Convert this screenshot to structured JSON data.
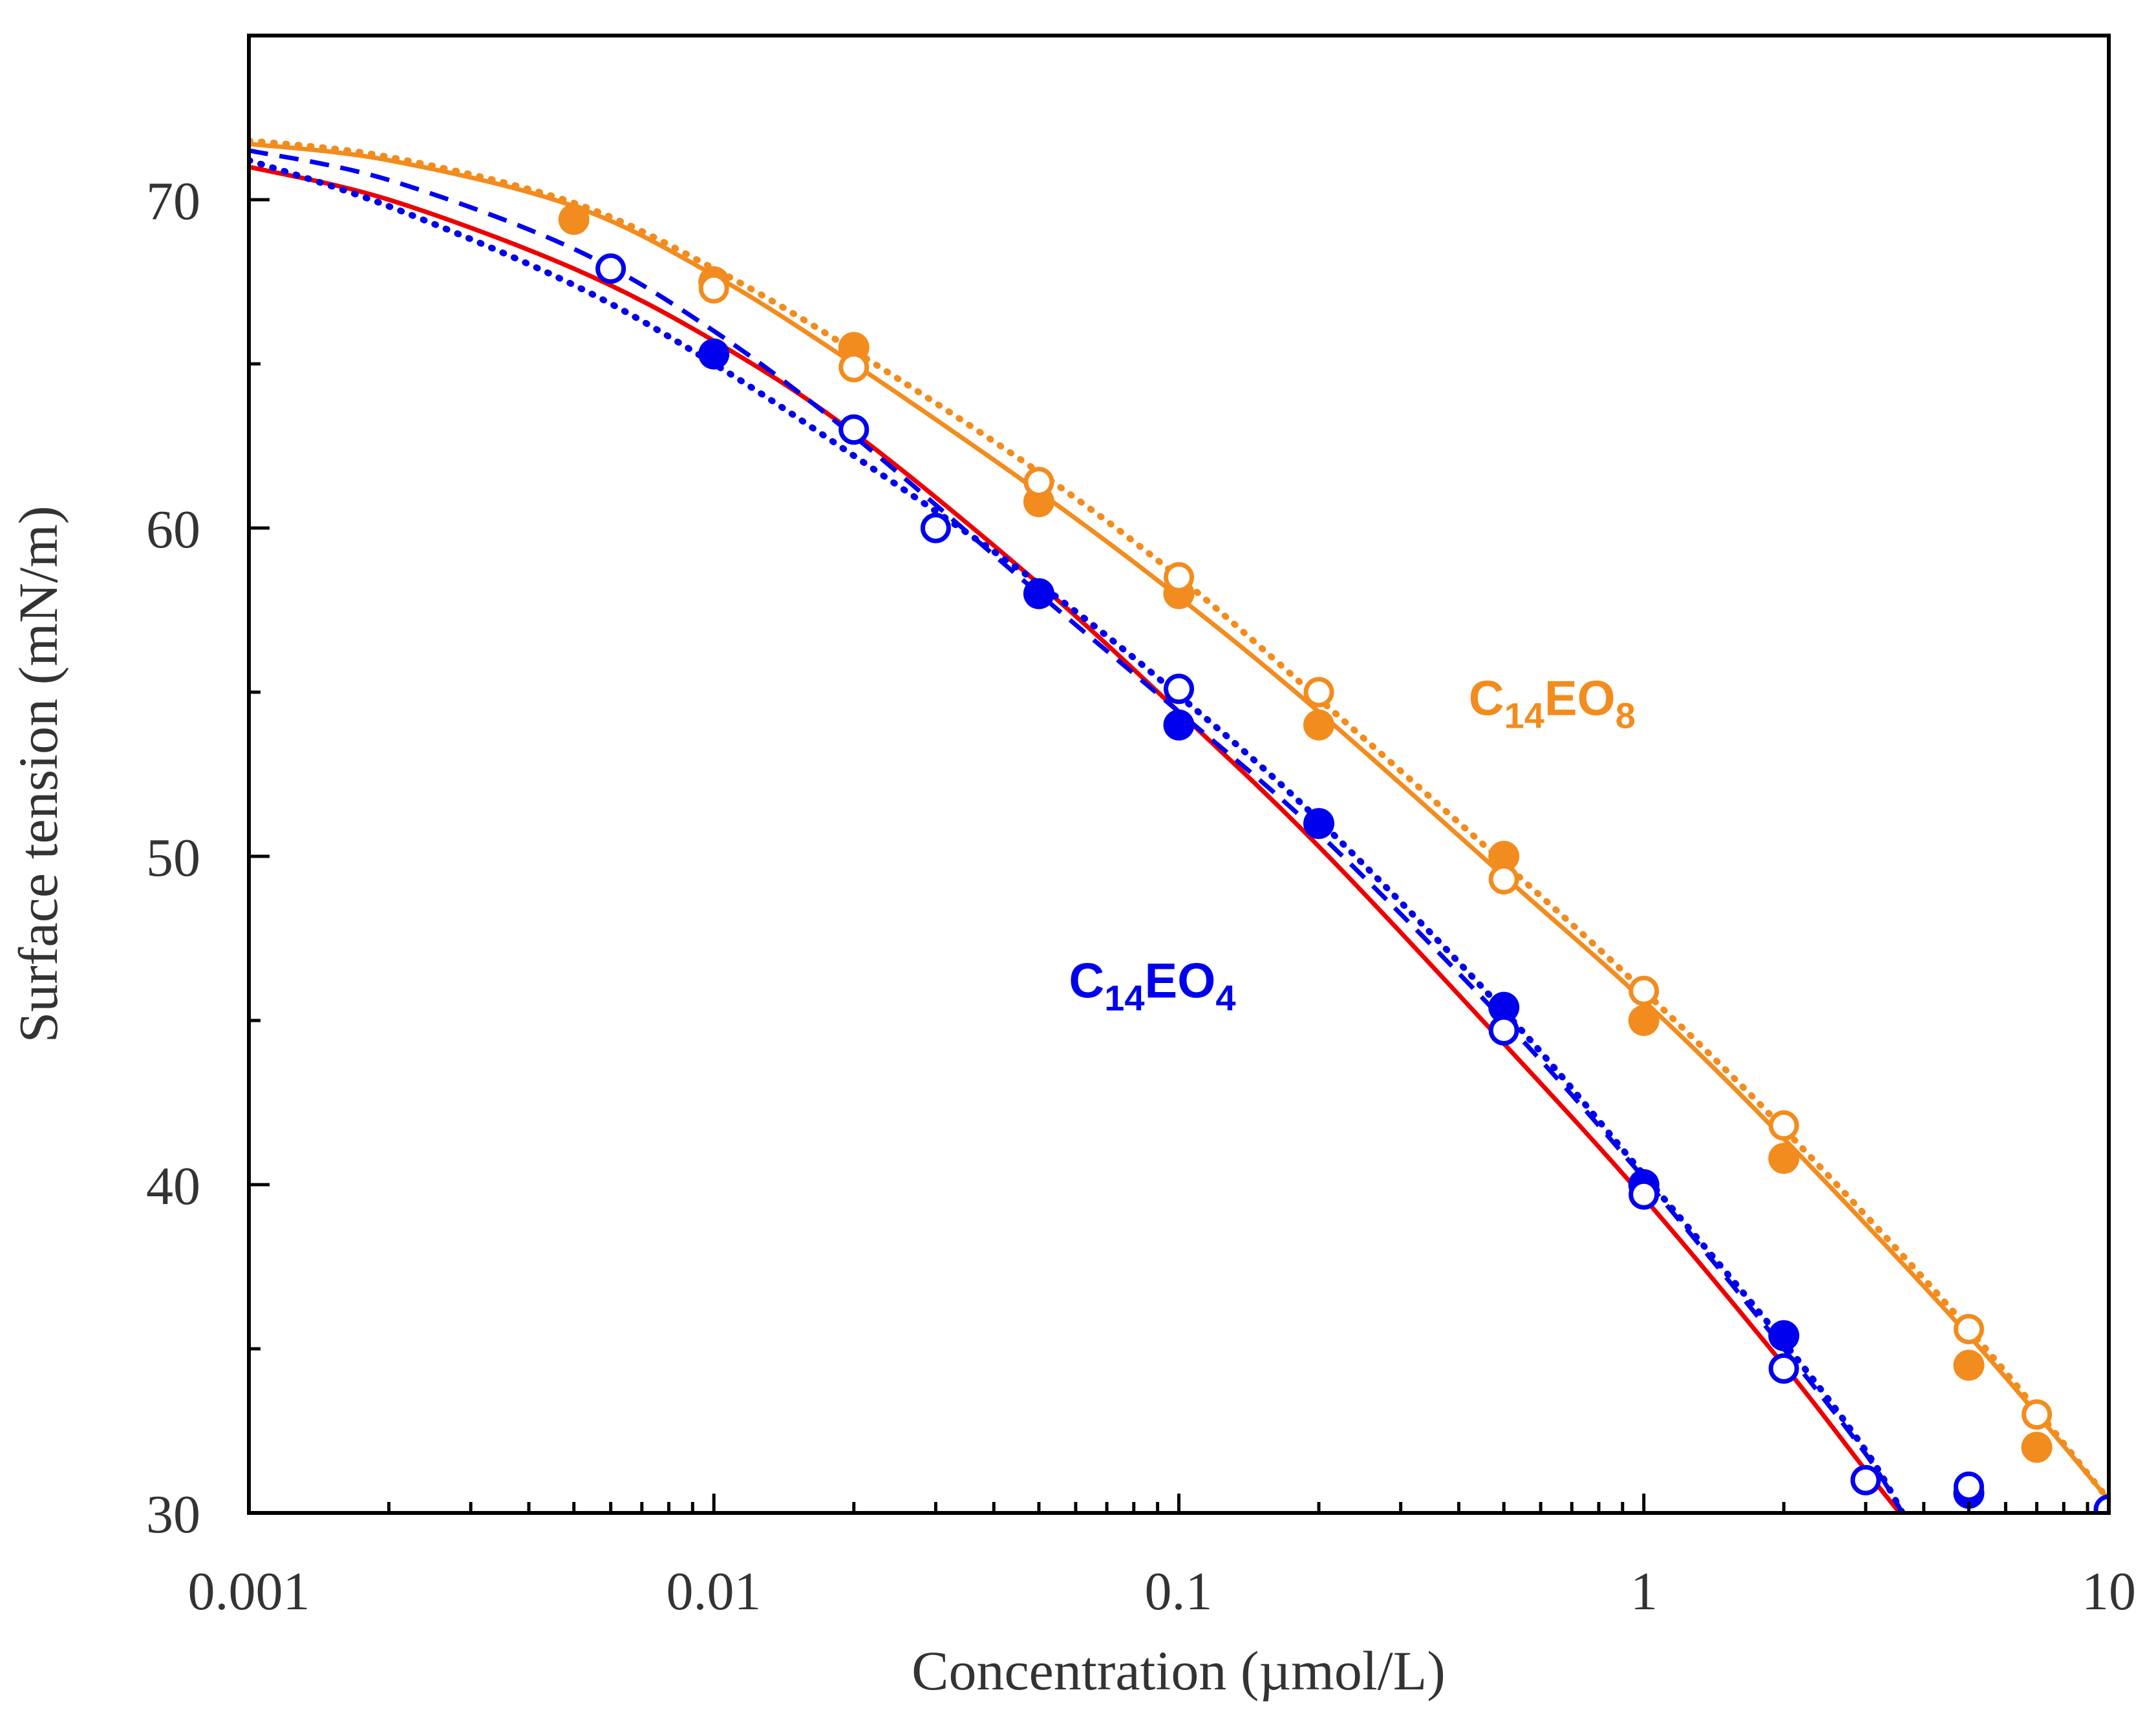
{
  "chart_data": {
    "type": "scatter",
    "title": "",
    "xlabel": "Concentration (µmol/L)",
    "ylabel": "Surface tension (mN/m)",
    "xscale": "log",
    "xlim": [
      0.001,
      10
    ],
    "ylim": [
      30,
      75
    ],
    "grid": false,
    "x_ticks": [
      {
        "value": 0.001,
        "label": "0.001"
      },
      {
        "value": 0.01,
        "label": "0.01"
      },
      {
        "value": 0.1,
        "label": "0.1"
      },
      {
        "value": 1,
        "label": "1"
      },
      {
        "value": 10,
        "label": "10"
      }
    ],
    "y_ticks": [
      {
        "value": 30,
        "label": "30"
      },
      {
        "value": 40,
        "label": "40"
      },
      {
        "value": 50,
        "label": "50"
      },
      {
        "value": 60,
        "label": "60"
      },
      {
        "value": 70,
        "label": "70"
      }
    ],
    "y_minor_ticks": [
      35,
      45,
      55,
      65
    ],
    "annotations": [
      {
        "text_main": "C",
        "text_sub1": "14",
        "text_mid": "EO",
        "text_sub2": "8",
        "color": "#f28c1e",
        "x": 0.42,
        "y": 54.3
      },
      {
        "text_main": "C",
        "text_sub1": "14",
        "text_mid": "EO",
        "text_sub2": "4",
        "color": "#0000ee",
        "x": 0.058,
        "y": 45.7
      }
    ],
    "series": [
      {
        "name": "C14EO8 filled",
        "color": "#f28c1e",
        "marker": "filled-circle",
        "x": [
          0.005,
          0.01,
          0.02,
          0.05,
          0.1,
          0.2,
          0.5,
          1,
          2,
          5,
          7
        ],
        "y": [
          69.4,
          67.5,
          65.5,
          60.8,
          58.0,
          54.0,
          50.0,
          45.0,
          40.8,
          34.5,
          32.0
        ]
      },
      {
        "name": "C14EO8 open",
        "color": "#f28c1e",
        "marker": "open-circle",
        "x": [
          0.01,
          0.02,
          0.05,
          0.1,
          0.2,
          0.5,
          1,
          2,
          5,
          7
        ],
        "y": [
          67.3,
          64.9,
          61.4,
          58.5,
          55.0,
          49.3,
          45.9,
          41.8,
          35.6,
          33.0
        ]
      },
      {
        "name": "C14EO4 filled",
        "color": "#0000ee",
        "marker": "filled-circle",
        "x": [
          0.01,
          0.05,
          0.1,
          0.2,
          0.5,
          1,
          2,
          5
        ],
        "y": [
          65.3,
          58.0,
          54.0,
          51.0,
          45.4,
          40.0,
          35.4,
          30.6
        ]
      },
      {
        "name": "C14EO4 open",
        "color": "#0000ee",
        "marker": "open-circle",
        "x": [
          0.006,
          0.02,
          0.03,
          0.1,
          0.5,
          1,
          2,
          3,
          5,
          10
        ],
        "y": [
          67.9,
          63.0,
          60.0,
          55.1,
          44.7,
          39.7,
          34.4,
          31.0,
          30.8,
          30.1
        ]
      },
      {
        "name": "C14EO8 fit solid",
        "color": "#f28c1e",
        "style": "solid",
        "x": [
          0.001,
          0.002,
          0.005,
          0.01,
          0.02,
          0.05,
          0.1,
          0.2,
          0.5,
          1,
          2,
          5,
          10
        ],
        "y": [
          71.7,
          71.2,
          69.8,
          67.7,
          65.0,
          61.1,
          57.9,
          54.4,
          49.4,
          45.6,
          41.4,
          35.4,
          30.4
        ]
      },
      {
        "name": "C14EO8 fit dotted",
        "color": "#f28c1e",
        "style": "dotted",
        "x": [
          0.001,
          0.002,
          0.005,
          0.01,
          0.02,
          0.05,
          0.1,
          0.2,
          0.5,
          1,
          2,
          5,
          10
        ],
        "y": [
          71.8,
          71.3,
          69.9,
          67.9,
          65.4,
          61.7,
          58.5,
          54.8,
          49.8,
          45.9,
          41.7,
          35.6,
          30.4
        ]
      },
      {
        "name": "C14EO4 fit solid",
        "color": "#ee0000",
        "style": "solid",
        "x": [
          0.001,
          0.002,
          0.005,
          0.01,
          0.02,
          0.05,
          0.1,
          0.2,
          0.5,
          1,
          2,
          3,
          3.6
        ],
        "y": [
          71.0,
          70.0,
          67.9,
          65.7,
          62.9,
          58.3,
          54.4,
          50.3,
          44.3,
          39.6,
          34.5,
          31.3,
          29.9
        ]
      },
      {
        "name": "C14EO4 fit dashed",
        "color": "#0000ee",
        "style": "dashed",
        "x": [
          0.001,
          0.002,
          0.005,
          0.01,
          0.02,
          0.05,
          0.1,
          0.2,
          0.5,
          1,
          2,
          3,
          3.6
        ],
        "y": [
          71.5,
          70.6,
          68.5,
          66.0,
          62.8,
          58.0,
          54.4,
          50.7,
          45.0,
          40.2,
          35.0,
          31.8,
          30.0
        ]
      },
      {
        "name": "C14EO4 fit dotted",
        "color": "#0000ee",
        "style": "dotted",
        "x": [
          0.001,
          0.002,
          0.005,
          0.01,
          0.02,
          0.05,
          0.1,
          0.2,
          0.5,
          1,
          2,
          3,
          3.6
        ],
        "y": [
          71.2,
          69.8,
          67.4,
          65.0,
          62.2,
          58.3,
          54.9,
          51.1,
          45.3,
          40.3,
          35.2,
          31.9,
          30.0
        ]
      }
    ]
  }
}
